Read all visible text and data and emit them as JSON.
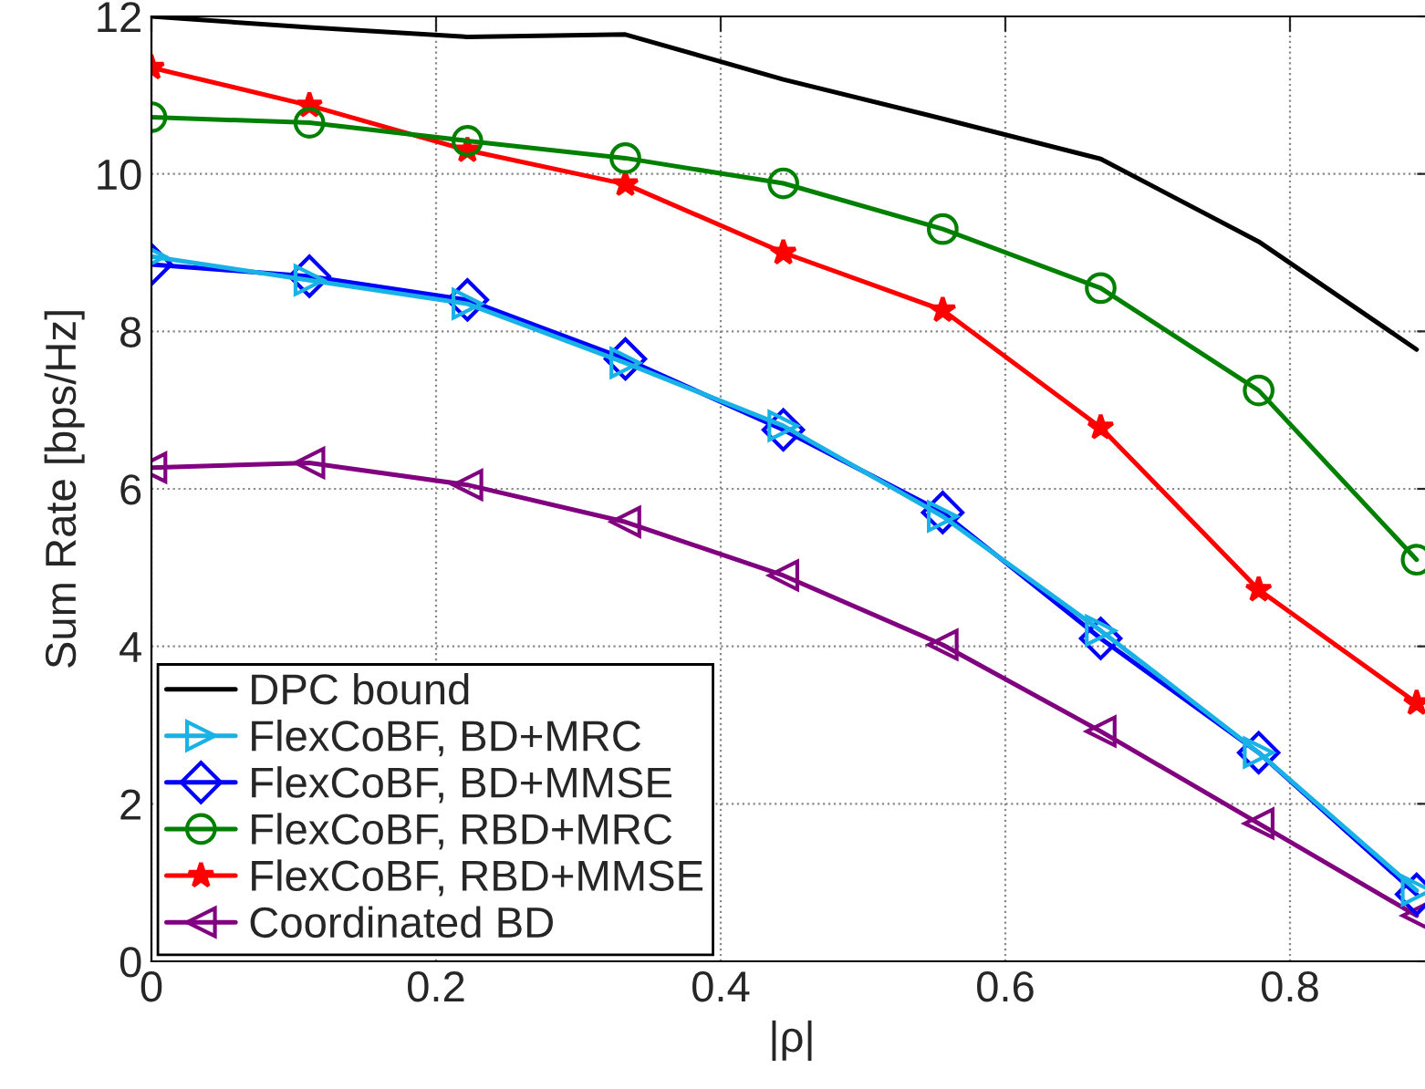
{
  "chart_data": {
    "type": "line",
    "xlabel": "|ρ|",
    "ylabel": "Sum Rate [bps/Hz]",
    "x": [
      0,
      0.111,
      0.222,
      0.333,
      0.444,
      0.556,
      0.667,
      0.778,
      0.889
    ],
    "series": [
      {
        "name": "DPC bound",
        "color": "#000000",
        "marker": "none",
        "values": [
          12.0,
          11.86,
          11.74,
          11.77,
          11.2,
          10.7,
          10.19,
          9.14,
          7.77
        ]
      },
      {
        "name": "FlexCoBF, BD+MRC",
        "color": "#19b2e6",
        "marker": "triangle",
        "values": [
          8.95,
          8.65,
          8.35,
          7.6,
          6.8,
          5.65,
          4.2,
          2.65,
          0.9
        ]
      },
      {
        "name": "FlexCoBF, BD+MMSE",
        "color": "#0000ff",
        "marker": "diamond",
        "values": [
          8.85,
          8.7,
          8.4,
          7.65,
          6.75,
          5.7,
          4.1,
          2.65,
          0.85
        ]
      },
      {
        "name": "FlexCoBF, RBD+MRC",
        "color": "#008000",
        "marker": "circle",
        "values": [
          10.72,
          10.65,
          10.42,
          10.2,
          9.88,
          9.3,
          8.55,
          7.25,
          5.1
        ]
      },
      {
        "name": "FlexCoBF, RBD+MMSE",
        "color": "#ff0000",
        "marker": "star",
        "values": [
          11.35,
          10.87,
          10.3,
          9.87,
          9.0,
          8.27,
          6.78,
          4.72,
          3.28
        ]
      },
      {
        "name": "Coordinated BD",
        "color": "#800080",
        "marker": "triangle",
        "values": [
          6.27,
          6.33,
          6.05,
          5.58,
          4.9,
          4.02,
          2.92,
          1.75,
          0.58
        ]
      }
    ],
    "xlim": [
      0,
      0.9
    ],
    "ylim": [
      0,
      12
    ],
    "xticks": [
      0,
      0.2,
      0.4,
      0.6,
      0.8
    ],
    "yticks": [
      0,
      2,
      4,
      6,
      8,
      10,
      12
    ],
    "grid": true,
    "legend": "bottom left",
    "line_style": "solid"
  }
}
